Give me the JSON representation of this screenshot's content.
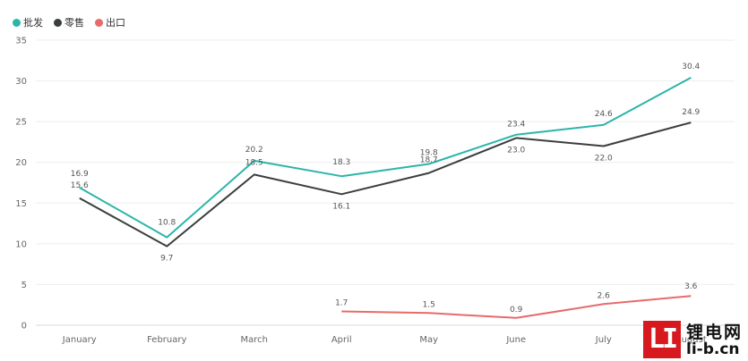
{
  "chart_data": {
    "type": "line",
    "categories": [
      "January",
      "February",
      "March",
      "April",
      "May",
      "June",
      "July",
      "August"
    ],
    "series": [
      {
        "name": "批发",
        "color": "#2bb5a9",
        "values": [
          16.9,
          10.8,
          20.2,
          18.3,
          19.8,
          23.4,
          24.6,
          30.4
        ]
      },
      {
        "name": "零售",
        "color": "#3a3f3e",
        "values": [
          15.6,
          9.7,
          18.5,
          16.1,
          18.7,
          23.0,
          22.0,
          24.9
        ]
      },
      {
        "name": "出口",
        "color": "#e86a6a",
        "values": [
          null,
          null,
          null,
          1.7,
          1.5,
          0.9,
          2.6,
          3.6
        ]
      }
    ],
    "ylim": [
      0,
      35
    ],
    "yticks": [
      0,
      5,
      10,
      15,
      20,
      25,
      30,
      35
    ],
    "grid": true,
    "legend_position": "top-left"
  },
  "logo": {
    "mark": "LI",
    "name": "锂电网",
    "url": "li-b.cn"
  }
}
